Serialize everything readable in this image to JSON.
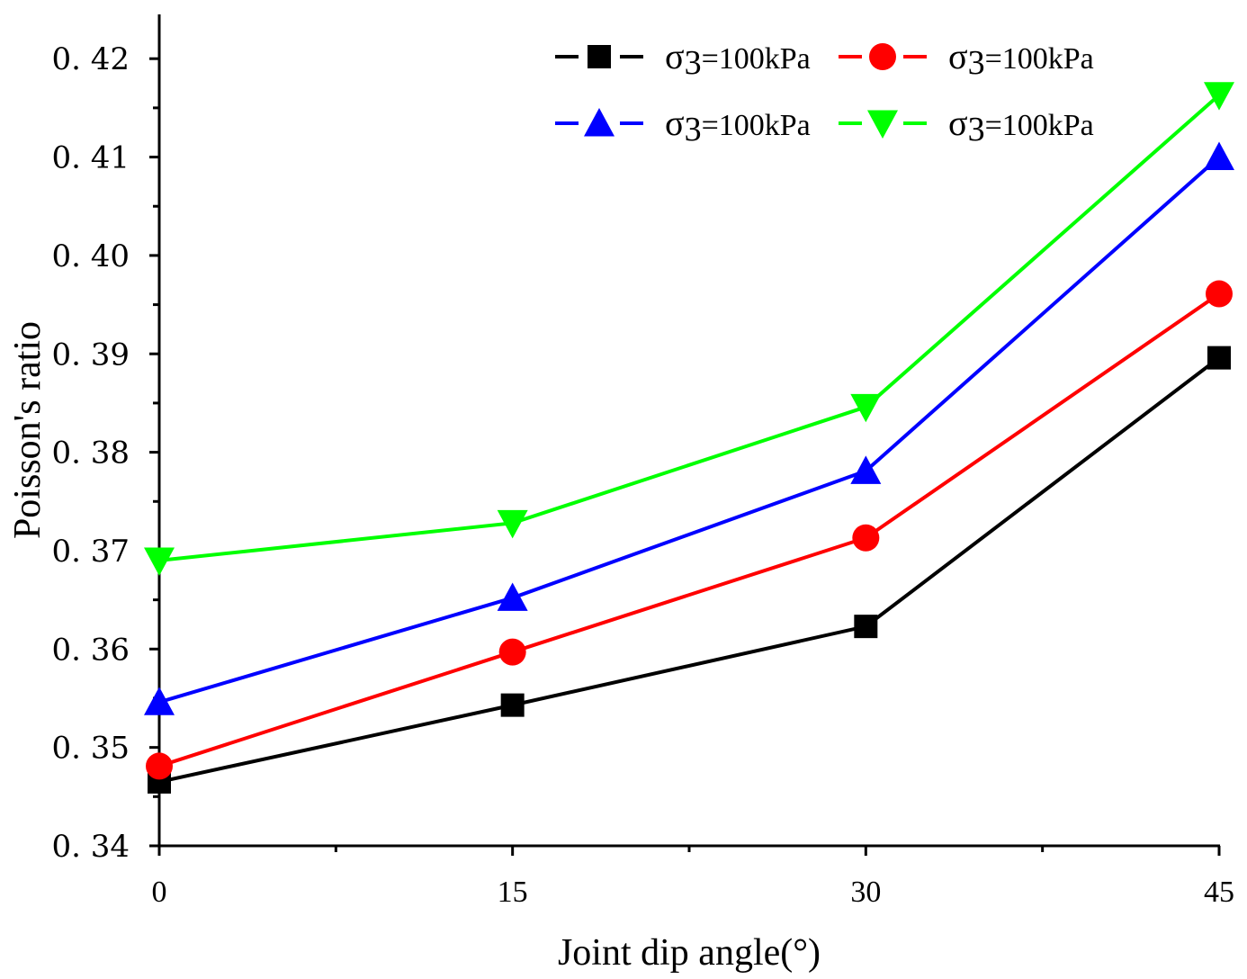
{
  "chart_data": {
    "type": "line",
    "title": "",
    "xlabel": "Joint dip angle(°)",
    "ylabel": "Poisson's ratio",
    "x": [
      0,
      15,
      30,
      45
    ],
    "x_tick_labels": [
      "0",
      "15",
      "30",
      "45"
    ],
    "xlim": [
      0,
      45
    ],
    "ylim": [
      0.34,
      0.4245
    ],
    "y_ticks": [
      0.34,
      0.35,
      0.36,
      0.37,
      0.38,
      0.39,
      0.4,
      0.41,
      0.42
    ],
    "y_tick_labels": [
      "0. 34",
      "0. 35",
      "0. 36",
      "0. 37",
      "0. 38",
      "0. 39",
      "0. 40",
      "0. 41",
      "0. 42"
    ],
    "grid": false,
    "legend_position": "top-right",
    "series": [
      {
        "name": "σ3=100kPa",
        "legend_prefix": "σ",
        "legend_sub": "3",
        "legend_suffix": "=100kPa",
        "color": "#000000",
        "marker": "square",
        "values": [
          0.3465,
          0.3543,
          0.3623,
          0.3896
        ]
      },
      {
        "name": "σ3=100kPa",
        "legend_prefix": "σ",
        "legend_sub": "3",
        "legend_suffix": "=100kPa",
        "color": "#ff0000",
        "marker": "circle",
        "values": [
          0.3481,
          0.3597,
          0.3713,
          0.3961
        ]
      },
      {
        "name": "σ3=100kPa",
        "legend_prefix": "σ",
        "legend_sub": "3",
        "legend_suffix": "=100kPa",
        "color": "#0000ff",
        "marker": "triangle-up",
        "values": [
          0.3546,
          0.3652,
          0.3781,
          0.41
        ]
      },
      {
        "name": "σ3=100kPa",
        "legend_prefix": "σ",
        "legend_sub": "3",
        "legend_suffix": "=100kPa",
        "color": "#00ff00",
        "marker": "triangle-down",
        "values": [
          0.369,
          0.3728,
          0.3846,
          0.4163
        ]
      }
    ]
  }
}
